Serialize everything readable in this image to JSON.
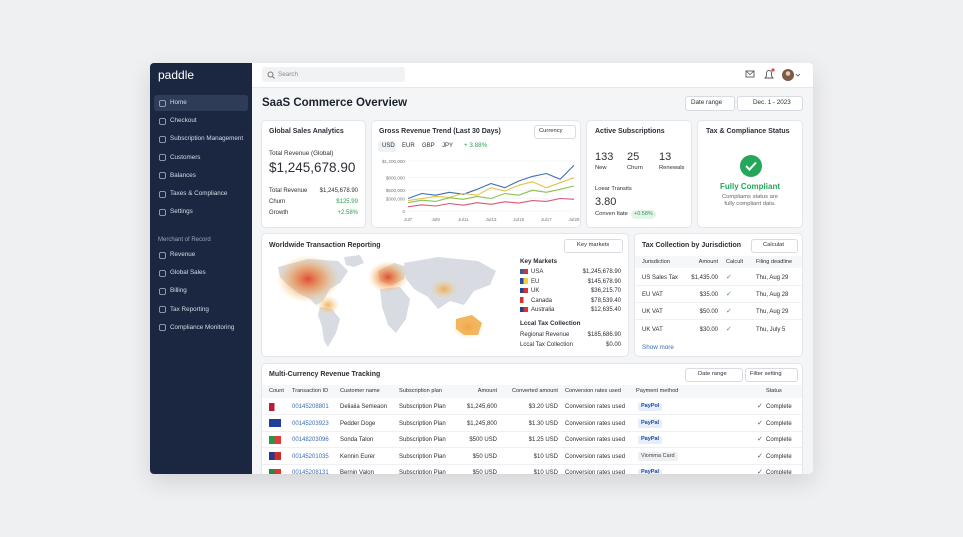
{
  "sidebar": {
    "logo": "paddle",
    "nav": [
      "Home",
      "Checkout",
      "Subscription Management",
      "Customers",
      "Balances",
      "Taxes & Compliance",
      "Settings"
    ],
    "section": "Merchant of Record",
    "nav2": [
      "Revenue",
      "Global Sales",
      "Billing",
      "Tax Reporting",
      "Compliance Monitoring"
    ]
  },
  "topbar": {
    "search": "Search"
  },
  "header": {
    "title": "SaaS Commerce Overview",
    "date_range": "Date range",
    "date": "Dec. 1 - 2023"
  },
  "global_sales": {
    "title": "Global Sales Analytics",
    "total_label": "Total Revenue (Global)",
    "total": "$1,245,678.90",
    "rows": [
      [
        "Total Revenue",
        "$1,245,678.90"
      ],
      [
        "Churn",
        "$125.99"
      ],
      [
        "Growth",
        "+2.58%"
      ]
    ]
  },
  "revenue_trend": {
    "title": "Gross Revenue Trend (Last 30 Days)",
    "currency": "Currency",
    "tabs": [
      "USD",
      "EUR",
      "GBP",
      "JPY"
    ],
    "change": "+ 3.88%",
    "chart_data": {
      "type": "line",
      "categories": [
        "Jul7",
        null,
        "Jul9",
        null,
        "Jul11",
        null,
        "Jul13",
        null,
        "Jul15",
        null,
        "Jul17",
        null,
        "Jul29"
      ],
      "series": [
        {
          "color": "#3f6fb5",
          "values": [
            300000,
            420000,
            380000,
            450000,
            400000,
            520000,
            660000,
            560000,
            720000,
            830000,
            900000,
            760000,
            1100000
          ]
        },
        {
          "color": "#e3c34a",
          "values": [
            250000,
            300000,
            350000,
            330000,
            420000,
            380000,
            560000,
            480000,
            620000,
            700000,
            560000,
            680000,
            800000
          ]
        },
        {
          "color": "#8cc152",
          "values": [
            200000,
            260000,
            230000,
            320000,
            280000,
            350000,
            300000,
            420000,
            380000,
            500000,
            450000,
            520000,
            600000
          ]
        },
        {
          "color": "#d9577c",
          "values": [
            100000,
            150000,
            120000,
            180000,
            140000,
            200000,
            160000,
            220000,
            190000,
            250000,
            230000,
            300000,
            280000
          ]
        }
      ],
      "ylim": [
        0,
        1200000
      ],
      "yticks": [
        {
          "value": 1200000,
          "label": "$1,200,000"
        },
        {
          "value": 800000,
          "label": "$800,000"
        },
        {
          "value": 500000,
          "label": "$500,000"
        },
        {
          "value": 300000,
          "label": "$300,000"
        },
        0
      ],
      "grid": true
    }
  },
  "subscriptions": {
    "title": "Active Subscriptions",
    "stats": [
      {
        "value": "133",
        "label": "New"
      },
      {
        "value": "25",
        "label": "Churn"
      },
      {
        "value": "13",
        "label": "Renewals"
      }
    ],
    "lower_label": "Loear Transits",
    "lower_value": "3.80",
    "conv_label": "Conven Itate",
    "conv_badge": "+0.58%"
  },
  "tax_status": {
    "title": "Tax & Compliance Status",
    "status": "Fully Compliant",
    "note": "Compliams status are fully compliant data."
  },
  "world": {
    "title": "Worldwide Transaction Reporting",
    "button": "Key markets",
    "markets_title": "Key Markets",
    "markets": [
      [
        "USA",
        "$1,245,678.90"
      ],
      [
        "EU",
        "$145,678.90"
      ],
      [
        "UK",
        "$36,215.70"
      ],
      [
        "Canada",
        "$78,539.40"
      ],
      [
        "Australia",
        "$12,635.40"
      ]
    ],
    "local_title": "Lccal Tax Collection",
    "local": [
      [
        "Regional Revenue",
        "$185,686.90"
      ],
      [
        "Lccal Tax Collection",
        "$0.00"
      ]
    ]
  },
  "tax_jurisdiction": {
    "title": "Tax Collection by Jurisdiction",
    "button": "Calculat",
    "columns": [
      "Jurisdiction",
      "Amount",
      "Calcult",
      "Filing deadline"
    ],
    "rows": [
      [
        "US Sales Tax",
        "$1,435.00",
        "Thu, Aug 29"
      ],
      [
        "EU VAT",
        "$35.00",
        "Thu, Aug 28"
      ],
      [
        "UK VAT",
        "$50.00",
        "Thu, Aug 29"
      ],
      [
        "UK VAT",
        "$30.00",
        "Thu, July 5"
      ]
    ],
    "more": "Show more"
  },
  "tracking": {
    "title": "Multi-Currency Revenue Tracking",
    "date_range": "Date range",
    "filter": "Filter setting",
    "columns": [
      "Count",
      "Transaction ID",
      "Customer name",
      "Subscription plan",
      "Amount",
      "Converted amount",
      "Conversion rates used",
      "Payment method",
      "Status"
    ],
    "rows": [
      [
        "00145208801",
        "Deliaiia Semeaon",
        "Subscription Plan",
        "$1,245,600",
        "$3.20 USD",
        "Conversion rates used",
        "PayPol",
        "Complete"
      ],
      [
        "00145203923",
        "Pedder Doge",
        "Subscription Plan",
        "$1,245,800",
        "$1.30 USD",
        "Conversion rates used",
        "PayPal",
        "Complete"
      ],
      [
        "00148203096",
        "Sonda Talon",
        "Subscription Plan",
        "$500 USD",
        "$1.25 USD",
        "Conversion rates used",
        "PayPal",
        "Complete"
      ],
      [
        "00145201035",
        "Kennin Eurer",
        "Subscription Plan",
        "$50 USD",
        "$10 USD",
        "Conversion rates used",
        "Viomma Card",
        "Complete"
      ],
      [
        "00145208131",
        "Bernin Valon",
        "Subscription Plan",
        "$50 USD",
        "$10 USD",
        "Conversion rates used",
        "PayPal",
        "Complete"
      ]
    ]
  }
}
